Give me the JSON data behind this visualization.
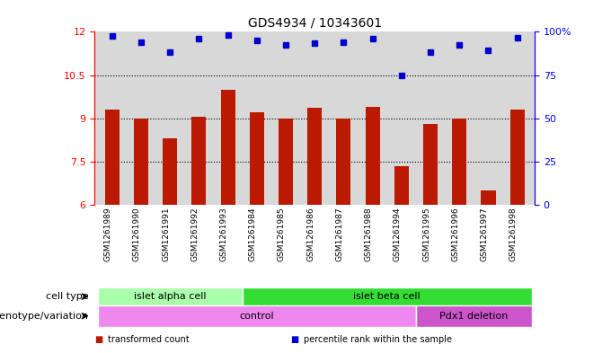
{
  "title": "GDS4934 / 10343601",
  "samples": [
    "GSM1261989",
    "GSM1261990",
    "GSM1261991",
    "GSM1261992",
    "GSM1261993",
    "GSM1261984",
    "GSM1261985",
    "GSM1261986",
    "GSM1261987",
    "GSM1261988",
    "GSM1261994",
    "GSM1261995",
    "GSM1261996",
    "GSM1261997",
    "GSM1261998"
  ],
  "bar_values": [
    9.3,
    9.0,
    8.3,
    9.05,
    10.0,
    9.2,
    9.0,
    9.35,
    9.0,
    9.4,
    7.35,
    8.8,
    9.0,
    6.5,
    9.3
  ],
  "dot_values": [
    11.85,
    11.65,
    11.3,
    11.75,
    11.9,
    11.7,
    11.55,
    11.6,
    11.65,
    11.75,
    10.5,
    11.3,
    11.55,
    11.35,
    11.8
  ],
  "ylim": [
    6,
    12
  ],
  "yticks": [
    6,
    7.5,
    9,
    10.5,
    12
  ],
  "ytick_labels": [
    "6",
    "7.5",
    "9",
    "10.5",
    "12"
  ],
  "right_yticks_pct": [
    0,
    25,
    50,
    75,
    100
  ],
  "right_ytick_labels": [
    "0",
    "25",
    "50",
    "75",
    "100%"
  ],
  "bar_color": "#bb1a00",
  "dot_color": "#0000cc",
  "cell_type_groups": [
    {
      "label": "islet alpha cell",
      "start": 0,
      "end": 4,
      "color": "#aaffaa"
    },
    {
      "label": "islet beta cell",
      "start": 5,
      "end": 14,
      "color": "#33dd33"
    }
  ],
  "genotype_groups": [
    {
      "label": "control",
      "start": 0,
      "end": 10,
      "color": "#ee88ee"
    },
    {
      "label": "Pdx1 deletion",
      "start": 11,
      "end": 14,
      "color": "#cc55cc"
    }
  ],
  "legend_items": [
    {
      "color": "#bb1a00",
      "label": "transformed count"
    },
    {
      "color": "#0000cc",
      "label": "percentile rank within the sample"
    }
  ],
  "cell_type_label": "cell type",
  "genotype_label": "genotype/variation",
  "plot_bg": "#d8d8d8",
  "label_bg": "#c8c8c8"
}
